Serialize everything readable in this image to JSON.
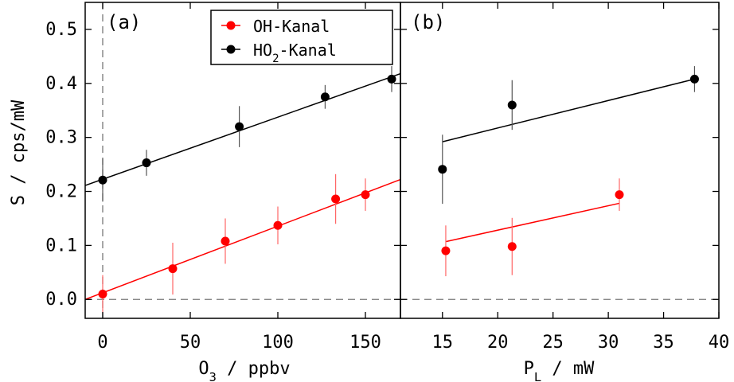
{
  "chart_data": [
    {
      "type": "scatter",
      "panel_label": "(a)",
      "xlabel": "O₃ / ppbv",
      "ylabel": "S / cps/mW",
      "xlim": [
        -10,
        170
      ],
      "ylim": [
        -0.035,
        0.55
      ],
      "xticks": [
        0,
        50,
        100,
        150
      ],
      "yticks": [
        0.0,
        0.1,
        0.2,
        0.3,
        0.4,
        0.5
      ],
      "ytick_labels": [
        "0.0",
        "0.1",
        "0.2",
        "0.3",
        "0.4",
        "0.5"
      ],
      "reference_lines": {
        "x": 0,
        "y": 0,
        "style": "dashed"
      },
      "legend": {
        "placement": "top-center"
      },
      "series": [
        {
          "name": "OH-Kanal",
          "color": "#ff0000",
          "x": [
            0,
            40,
            70,
            100,
            133,
            150
          ],
          "y": [
            0.01,
            0.057,
            0.108,
            0.137,
            0.186,
            0.194
          ],
          "yerr": [
            0.035,
            0.048,
            0.042,
            0.035,
            0.046,
            0.03
          ],
          "fit": {
            "x": [
              -10,
              170
            ],
            "y": [
              0.0,
              0.222
            ]
          }
        },
        {
          "name": "HO₂-Kanal",
          "color": "#000000",
          "x": [
            0,
            25,
            78,
            127,
            165
          ],
          "y": [
            0.221,
            0.253,
            0.32,
            0.375,
            0.408
          ],
          "yerr": [
            0.04,
            0.024,
            0.038,
            0.022,
            0.024
          ],
          "fit": {
            "x": [
              -10,
              170
            ],
            "y": [
              0.211,
              0.418
            ]
          }
        }
      ]
    },
    {
      "type": "scatter",
      "panel_label": "(b)",
      "xlabel": "P_L / mW",
      "ylabel": "",
      "xlim": [
        11.2,
        40
      ],
      "ylim": [
        -0.035,
        0.55
      ],
      "xticks": [
        15,
        20,
        25,
        30,
        35,
        40
      ],
      "yticks": [
        0.0,
        0.1,
        0.2,
        0.3,
        0.4,
        0.5
      ],
      "reference_lines": {
        "y": 0,
        "style": "dashed"
      },
      "series": [
        {
          "name": "OH-Kanal",
          "color": "#ff0000",
          "x": [
            15.3,
            21.3,
            31.0
          ],
          "y": [
            0.09,
            0.098,
            0.194
          ],
          "yerr": [
            0.047,
            0.053,
            0.03
          ],
          "fit": {
            "x": [
              15.3,
              31.0
            ],
            "y": [
              0.107,
              0.178
            ]
          }
        },
        {
          "name": "HO₂-Kanal",
          "color": "#000000",
          "x": [
            15.0,
            21.3,
            37.8
          ],
          "y": [
            0.241,
            0.36,
            0.408
          ],
          "yerr": [
            0.064,
            0.046,
            0.024
          ],
          "fit": {
            "x": [
              15.0,
              37.8
            ],
            "y": [
              0.292,
              0.408
            ]
          }
        }
      ]
    }
  ]
}
